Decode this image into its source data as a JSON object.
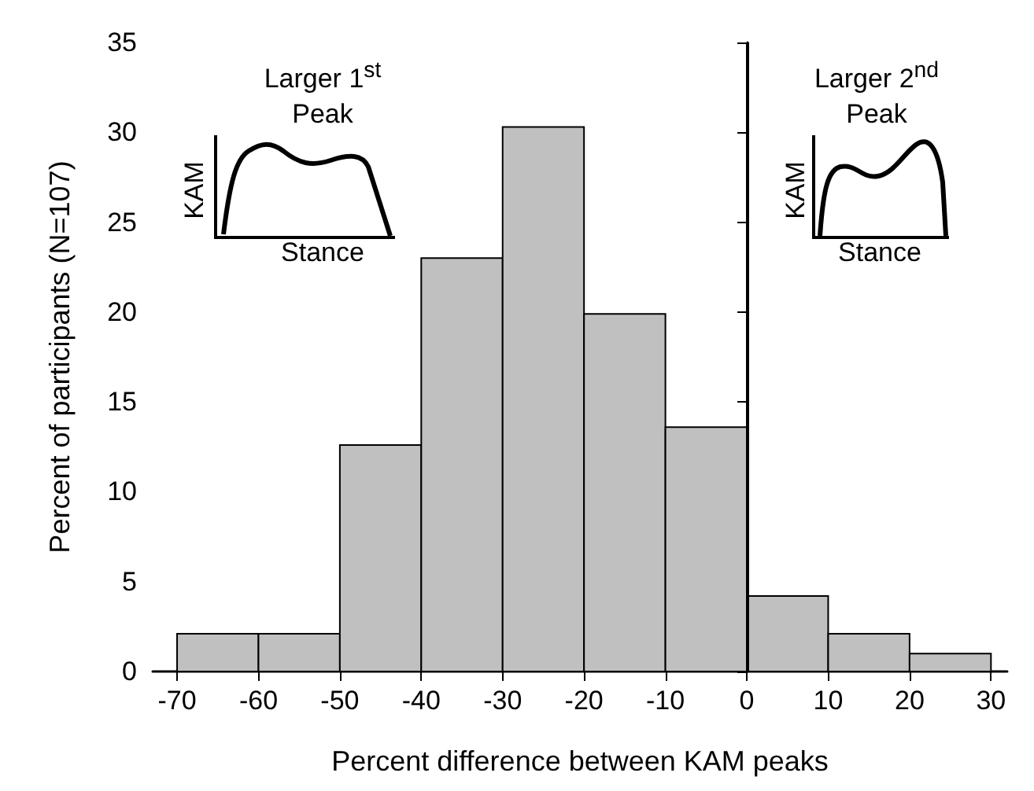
{
  "chart_data": {
    "type": "histogram",
    "xlabel": "Percent difference between KAM peaks",
    "ylabel": "Percent of participants (N=107)",
    "bins": [
      -70,
      -60,
      -50,
      -40,
      -30,
      -20,
      -10,
      0,
      10,
      20,
      30
    ],
    "values": [
      2.1,
      2.1,
      12.6,
      23.0,
      30.3,
      19.9,
      13.6,
      4.2,
      2.1,
      1.0
    ],
    "color": "#c0c0c0",
    "xlim": [
      -73,
      32
    ],
    "xticks": [
      -70,
      -60,
      -50,
      -40,
      -30,
      -20,
      -10,
      0,
      10,
      20,
      30
    ],
    "ylim": [
      0,
      35
    ],
    "yticks": [
      0,
      5,
      10,
      15,
      20,
      25,
      30,
      35
    ],
    "ref_lines": [
      {
        "axis": "x",
        "value": 0,
        "label": null,
        "color": "#000000"
      }
    ],
    "annotations": [
      "Larger 1$^{st}$ Peak",
      "KAM",
      "Stance",
      "Larger 2$^{nd}$ Peak",
      "KAM",
      "Stance"
    ],
    "grid": false
  }
}
